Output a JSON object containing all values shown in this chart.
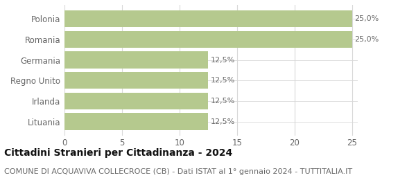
{
  "categories": [
    "Lituania",
    "Irlanda",
    "Regno Unito",
    "Germania",
    "Romania",
    "Polonia"
  ],
  "values": [
    12.5,
    12.5,
    12.5,
    12.5,
    25.0,
    25.0
  ],
  "labels": [
    "12,5%",
    "12,5%",
    "12,5%",
    "12,5%",
    "25,0%",
    "25,0%"
  ],
  "bar_color": "#b5c98e",
  "background_color": "#ffffff",
  "xlim": [
    0,
    25.5
  ],
  "xticks": [
    0,
    5,
    10,
    15,
    20,
    25
  ],
  "title": "Cittadini Stranieri per Cittadinanza - 2024",
  "subtitle": "COMUNE DI ACQUAVIVA COLLECROCE (CB) - Dati ISTAT al 1° gennaio 2024 - TUTTITALIA.IT",
  "title_fontsize": 10,
  "subtitle_fontsize": 8,
  "label_fontsize": 8,
  "ytick_fontsize": 8.5,
  "xtick_fontsize": 8.5,
  "grid_color": "#d8d8d8",
  "text_color": "#666666",
  "title_color": "#111111"
}
